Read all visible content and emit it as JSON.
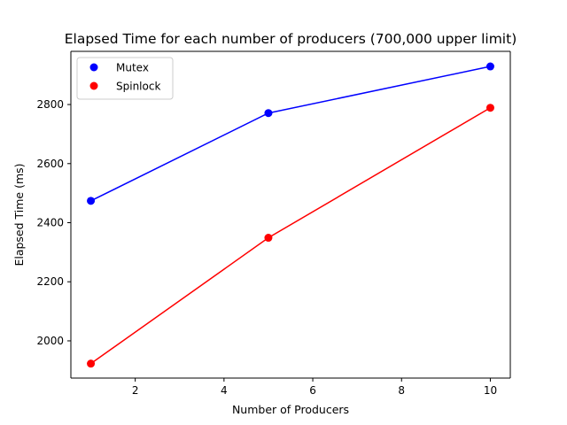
{
  "chart_data": {
    "type": "line",
    "title": "Elapsed Time for each number of producers (700,000 upper limit)",
    "xlabel": "Number of Producers",
    "ylabel": "Elapsed Time (ms)",
    "xlim": [
      0.55,
      10.45
    ],
    "ylim": [
      1874,
      2980
    ],
    "xticks": [
      2,
      4,
      6,
      8,
      10
    ],
    "yticks": [
      2000,
      2200,
      2400,
      2600,
      2800
    ],
    "grid": false,
    "legend_position": "top-left",
    "series": [
      {
        "name": "Mutex",
        "color": "#0000ff",
        "x": [
          1,
          5,
          10
        ],
        "values": [
          2474,
          2771,
          2929
        ]
      },
      {
        "name": "Spinlock",
        "color": "#ff0000",
        "x": [
          1,
          5,
          10
        ],
        "values": [
          1923,
          2349,
          2789
        ]
      }
    ]
  }
}
